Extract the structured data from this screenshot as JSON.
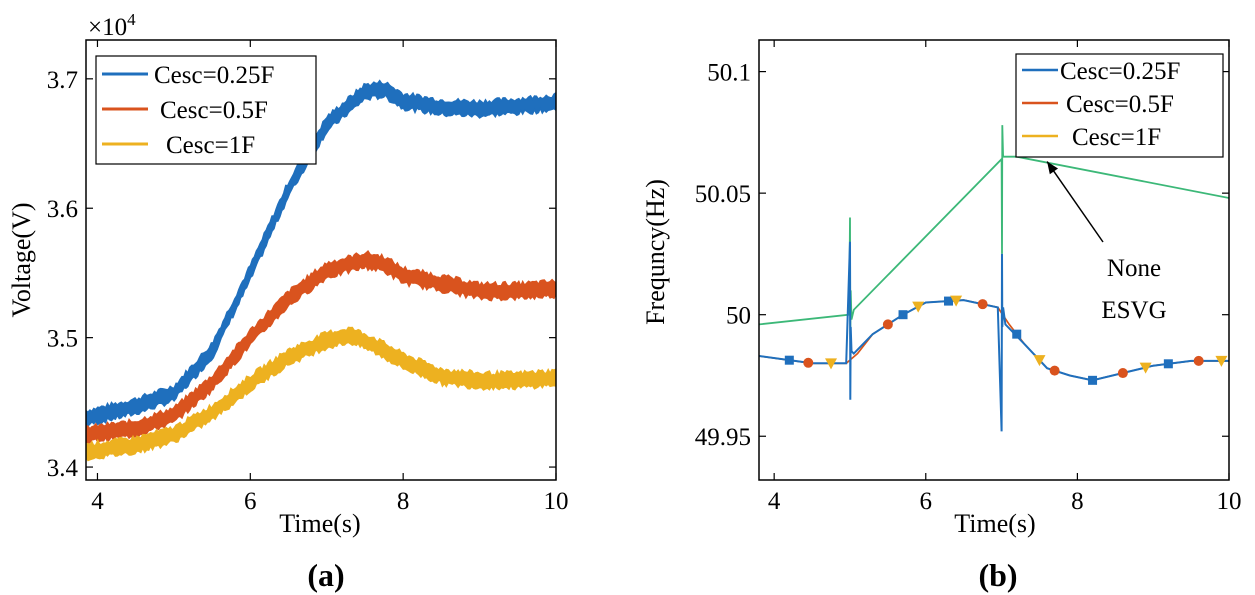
{
  "chart_data": [
    {
      "id": "a",
      "type": "line",
      "caption": "(a)",
      "xlabel": "Time(s)",
      "ylabel": "Voltage(V)",
      "exponent_label": "×10",
      "exponent_power": "4",
      "xlim": [
        3.85,
        10
      ],
      "ylim": [
        3.39,
        3.73
      ],
      "x_ticks": [
        4,
        6,
        8,
        10
      ],
      "x_tick_labels": [
        "4",
        "6",
        "8",
        "10"
      ],
      "y_ticks": [
        3.4,
        3.5,
        3.6,
        3.7
      ],
      "y_tick_labels": [
        "3.4",
        "3.5",
        "3.6",
        "3.7"
      ],
      "legend": [
        "Cesc=0.25F",
        "Cesc=0.5F",
        "Cesc=1F"
      ],
      "series": [
        {
          "name": "Cesc=0.25F",
          "color": "#1f6fbd",
          "band": 0.011,
          "x": [
            3.85,
            4.5,
            5.0,
            5.5,
            6.0,
            6.5,
            7.0,
            7.5,
            7.75,
            8.0,
            8.5,
            9.0,
            9.5,
            10.0
          ],
          "y": [
            3.438,
            3.447,
            3.457,
            3.49,
            3.55,
            3.615,
            3.665,
            3.69,
            3.692,
            3.683,
            3.678,
            3.677,
            3.679,
            3.682
          ]
        },
        {
          "name": "Cesc=0.5F",
          "color": "#d9531e",
          "band": 0.011,
          "x": [
            3.85,
            4.5,
            5.0,
            5.5,
            6.0,
            6.5,
            7.0,
            7.5,
            7.75,
            8.0,
            8.5,
            9.0,
            9.5,
            10.0
          ],
          "y": [
            3.425,
            3.43,
            3.44,
            3.465,
            3.5,
            3.53,
            3.552,
            3.56,
            3.557,
            3.548,
            3.542,
            3.536,
            3.536,
            3.538
          ]
        },
        {
          "name": "Cesc=1F",
          "color": "#edb120",
          "band": 0.011,
          "x": [
            3.85,
            4.5,
            5.0,
            5.5,
            6.0,
            6.5,
            7.0,
            7.3,
            7.6,
            8.0,
            8.5,
            9.0,
            9.5,
            10.0
          ],
          "y": [
            3.412,
            3.417,
            3.425,
            3.442,
            3.465,
            3.485,
            3.498,
            3.502,
            3.495,
            3.482,
            3.47,
            3.467,
            3.467,
            3.469
          ]
        }
      ]
    },
    {
      "id": "b",
      "type": "line",
      "caption": "(b)",
      "xlabel": "Time(s)",
      "ylabel": "Frequncy(Hz)",
      "xlim": [
        3.8,
        10
      ],
      "ylim": [
        49.932,
        50.113
      ],
      "x_ticks": [
        4,
        6,
        8,
        10
      ],
      "x_tick_labels": [
        "4",
        "6",
        "8",
        "10"
      ],
      "y_ticks": [
        49.95,
        50,
        50.05,
        50.1
      ],
      "y_tick_labels": [
        "49.95",
        "50",
        "50.05",
        "50.1"
      ],
      "legend": [
        "Cesc=0.25F",
        "Cesc=0.5F",
        "Cesc=1F"
      ],
      "annotation": {
        "lines": [
          "None",
          "ESVG"
        ],
        "arrow_to": [
          7.6,
          50.063
        ]
      },
      "none_esvg": {
        "color": "#3cb878",
        "x": [
          3.8,
          4.99,
          5.0,
          5.005,
          5.01,
          5.02,
          5.05,
          7.0,
          7.005,
          7.01,
          7.02,
          7.2,
          10.0
        ],
        "y": [
          49.996,
          50.0,
          50.04,
          49.99,
          50.01,
          49.998,
          50.002,
          50.064,
          50.025,
          50.078,
          50.065,
          50.065,
          50.048
        ]
      },
      "series": [
        {
          "name": "Cesc=0.25F",
          "color": "#1f6fbd",
          "marker": "square",
          "x": [
            3.8,
            4.5,
            4.95,
            5.0,
            5.005,
            5.01,
            5.02,
            5.05,
            5.3,
            5.7,
            6.0,
            6.5,
            6.95,
            7.0,
            7.005,
            7.01,
            7.02,
            7.05,
            7.3,
            7.6,
            7.9,
            8.2,
            8.6,
            9.0,
            9.5,
            10.0
          ],
          "y": [
            49.983,
            49.98,
            49.98,
            50.03,
            49.965,
            49.995,
            49.985,
            49.984,
            49.992,
            50.0,
            50.005,
            50.006,
            50.003,
            49.952,
            50.025,
            49.995,
            50.003,
            49.996,
            49.988,
            49.978,
            49.975,
            49.973,
            49.976,
            49.979,
            49.981,
            49.981
          ],
          "markers_x": [
            4.2,
            5.7,
            6.3,
            7.2,
            8.2,
            9.2
          ]
        },
        {
          "name": "Cesc=0.5F",
          "color": "#d9531e",
          "marker": "circle",
          "x": [
            3.8,
            4.5,
            4.95,
            5.1,
            5.3,
            5.7,
            6.0,
            6.5,
            6.95,
            7.1,
            7.3,
            7.6,
            7.9,
            8.2,
            8.6,
            9.0,
            9.5,
            10.0
          ],
          "y": [
            49.983,
            49.98,
            49.98,
            49.984,
            49.992,
            50.0,
            50.005,
            50.006,
            50.003,
            49.996,
            49.988,
            49.978,
            49.975,
            49.973,
            49.976,
            49.979,
            49.981,
            49.981
          ],
          "markers_x": [
            4.45,
            5.5,
            6.75,
            7.7,
            8.6,
            9.6
          ]
        },
        {
          "name": "Cesc=1F",
          "color": "#edb120",
          "marker": "triangle-down",
          "x": [
            3.8,
            4.5,
            4.95,
            5.1,
            5.3,
            5.7,
            6.0,
            6.5,
            6.95,
            7.1,
            7.3,
            7.6,
            7.9,
            8.2,
            8.6,
            9.0,
            9.5,
            10.0
          ],
          "y": [
            49.983,
            49.98,
            49.98,
            49.984,
            49.992,
            50.0,
            50.005,
            50.006,
            50.003,
            49.996,
            49.988,
            49.978,
            49.975,
            49.973,
            49.976,
            49.979,
            49.981,
            49.981
          ],
          "markers_x": [
            4.75,
            5.9,
            6.4,
            7.5,
            8.9,
            9.9
          ]
        }
      ]
    }
  ]
}
